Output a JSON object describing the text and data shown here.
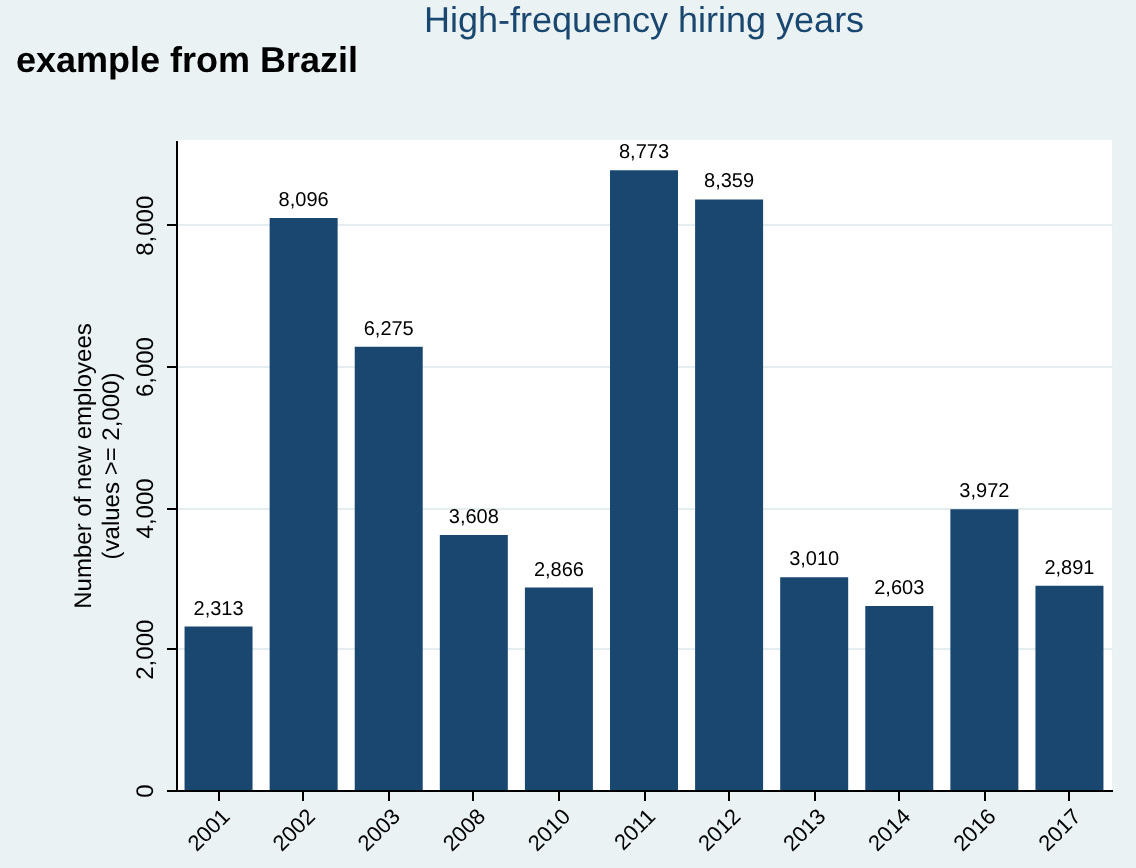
{
  "chart_data": {
    "type": "bar",
    "title": "High-frequency hiring years",
    "annotations": [
      "example from Brazil"
    ],
    "ylabel": "Number of new employees\n(values >= 2,000)",
    "categories": [
      "2001",
      "2002",
      "2003",
      "2008",
      "2010",
      "2011",
      "2012",
      "2013",
      "2014",
      "2016",
      "2017"
    ],
    "values": [
      2313,
      8096,
      6275,
      3608,
      2866,
      8773,
      8359,
      3010,
      2603,
      3972,
      2891
    ],
    "color": "#1a476f",
    "value_labels": [
      "2,313",
      "8,096",
      "6,275",
      "3,608",
      "2,866",
      "8,773",
      "8,359",
      "3,010",
      "2,603",
      "3,972",
      "2,891"
    ],
    "ylim": [
      0,
      9200
    ],
    "yticks": [
      0,
      {
        "value": 2000,
        "label": "2,000"
      },
      {
        "value": 4000,
        "label": "4,000"
      },
      {
        "value": 6000,
        "label": "6,000"
      },
      {
        "value": 8000,
        "label": "8,000"
      }
    ],
    "grid": "y"
  }
}
